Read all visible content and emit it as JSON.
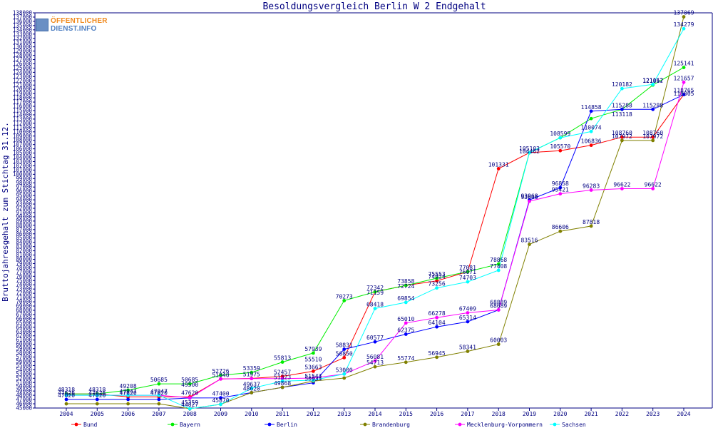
{
  "chart_data": {
    "type": "line",
    "title": "Besoldungsvergleich Berlin W 2 Endgehalt",
    "xlabel": "",
    "ylabel": "Bruttojahresgehalt zum Stichtag 31.12.",
    "ylim": [
      45000,
      138000
    ],
    "ystep": 1000,
    "grid": false,
    "legend_position": "bottom",
    "categories": [
      "2004",
      "2005",
      "2006",
      "2007",
      "2008",
      "2009",
      "2010",
      "2011",
      "2012",
      "2013",
      "2014",
      "2015",
      "2016",
      "2017",
      "2018",
      "2019",
      "2020",
      "2021",
      "2022",
      "2023",
      "2024"
    ],
    "series": [
      {
        "name": "Bund",
        "color": "#ff0000",
        "values": [
          48318,
          48318,
          47620,
          47620,
          47620,
          51840,
          51975,
          52457,
          53663,
          56850,
          72342,
          73858,
          74924,
          77081,
          101331,
          105103,
          105570,
          106836,
          108760,
          108760,
          118765
        ]
      },
      {
        "name": "Bayern",
        "color": "#00ee00",
        "values": [
          48318,
          48318,
          49208,
          50685,
          50685,
          52726,
          53359,
          55813,
          57939,
          70273,
          72342,
          73858,
          75553,
          77081,
          78868,
          105103,
          108599,
          113118,
          115288,
          121017,
          125141
        ]
      },
      {
        "name": "Berlin",
        "color": "#0000ff",
        "values": [
          47020,
          47020,
          47020,
          47020,
          47359,
          47400,
          48620,
          49868,
          50934,
          58831,
          60577,
          62375,
          64104,
          65314,
          68089,
          93968,
          96858,
          114858,
          115288,
          115288,
          118765
        ]
      },
      {
        "name": "Brandenburg",
        "color": "#808000",
        "values": [
          46000,
          46000,
          46000,
          46000,
          44827,
          45870,
          48620,
          49868,
          51323,
          52050,
          54713,
          55774,
          56945,
          58341,
          60003,
          83516,
          86606,
          87818,
          107972,
          107972,
          137069
        ]
      },
      {
        "name": "Mecklenburg-Vorpommern",
        "color": "#ff00ff",
        "values": [
          48000,
          48000,
          48000,
          48000,
          47400,
          51840,
          51924,
          51924,
          52050,
          53000,
          56081,
          65010,
          66278,
          67409,
          68089,
          93646,
          95421,
          96283,
          96622,
          96622,
          121657
        ]
      },
      {
        "name": "Sachsen",
        "color": "#00ffff",
        "values": [
          48000,
          48000,
          48000,
          48000,
          44827,
          45870,
          49637,
          51323,
          51543,
          53000,
          68418,
          69854,
          73256,
          74703,
          77408,
          105103,
          108599,
          110074,
          120182,
          121162,
          134279
        ]
      }
    ],
    "data_labels": [
      {
        "year": "2004",
        "value": "48318",
        "color": "#000080"
      },
      {
        "year": "2004",
        "value": "47626",
        "color": "#000080"
      },
      {
        "year": "2004",
        "value": "47020",
        "color": "#000080"
      },
      {
        "year": "2005",
        "value": "48318",
        "color": "#000080"
      },
      {
        "year": "2005",
        "value": "47626",
        "color": "#000080"
      },
      {
        "year": "2005",
        "value": "47020",
        "color": "#000080"
      },
      {
        "year": "2006",
        "value": "49208",
        "color": "#000080"
      },
      {
        "year": "2006",
        "value": "47947",
        "color": "#000080"
      },
      {
        "year": "2006",
        "value": "47620",
        "color": "#000080"
      },
      {
        "year": "2007",
        "value": "50685",
        "color": "#000080"
      },
      {
        "year": "2007",
        "value": "47947",
        "color": "#000080"
      },
      {
        "year": "2007",
        "value": "47620",
        "color": "#000080"
      },
      {
        "year": "2008",
        "value": "50685",
        "color": "#000080"
      },
      {
        "year": "2008",
        "value": "49500",
        "color": "#000080"
      },
      {
        "year": "2008",
        "value": "47620",
        "color": "#000080"
      },
      {
        "year": "2008",
        "value": "45359",
        "color": "#000080"
      },
      {
        "year": "2008",
        "value": "44827",
        "color": "#000080"
      },
      {
        "year": "2009",
        "value": "52726",
        "color": "#000080"
      },
      {
        "year": "2009",
        "value": "51840",
        "color": "#000080"
      },
      {
        "year": "2009",
        "value": "47400",
        "color": "#000080"
      },
      {
        "year": "2009",
        "value": "45870",
        "color": "#000080"
      },
      {
        "year": "2010",
        "value": "53359",
        "color": "#000080"
      },
      {
        "year": "2010",
        "value": "51975",
        "color": "#000080"
      },
      {
        "year": "2010",
        "value": "49637",
        "color": "#000080"
      },
      {
        "year": "2010",
        "value": "48620",
        "color": "#000080"
      },
      {
        "year": "2011",
        "value": "55813",
        "color": "#000080"
      },
      {
        "year": "2011",
        "value": "52457",
        "color": "#000080"
      },
      {
        "year": "2011",
        "value": "51323",
        "color": "#000080"
      },
      {
        "year": "2011",
        "value": "49868",
        "color": "#000080"
      },
      {
        "year": "2012",
        "value": "57939",
        "color": "#000080"
      },
      {
        "year": "2012",
        "value": "55510",
        "color": "#000080"
      },
      {
        "year": "2012",
        "value": "53663",
        "color": "#000080"
      },
      {
        "year": "2012",
        "value": "51543",
        "color": "#000080"
      },
      {
        "year": "2012",
        "value": "50934",
        "color": "#000080"
      },
      {
        "year": "2013",
        "value": "58831",
        "color": "#000080"
      },
      {
        "year": "2013",
        "value": "56850",
        "color": "#000080"
      },
      {
        "year": "2013",
        "value": "53000",
        "color": "#000080"
      },
      {
        "year": "2013",
        "value": "70273",
        "color": "#000080"
      },
      {
        "year": "2014",
        "value": "72342",
        "color": "#000080"
      },
      {
        "year": "2014",
        "value": "71159",
        "color": "#000080"
      },
      {
        "year": "2014",
        "value": "68418",
        "color": "#000080"
      },
      {
        "year": "2014",
        "value": "60577",
        "color": "#000080"
      },
      {
        "year": "2014",
        "value": "56081",
        "color": "#000080"
      },
      {
        "year": "2014",
        "value": "54713",
        "color": "#000080"
      },
      {
        "year": "2015",
        "value": "73858",
        "color": "#000080"
      },
      {
        "year": "2015",
        "value": "72724",
        "color": "#000080"
      },
      {
        "year": "2015",
        "value": "69854",
        "color": "#000080"
      },
      {
        "year": "2015",
        "value": "65010",
        "color": "#000080"
      },
      {
        "year": "2015",
        "value": "62375",
        "color": "#000080"
      },
      {
        "year": "2015",
        "value": "55774",
        "color": "#000080"
      },
      {
        "year": "2016",
        "value": "75553",
        "color": "#000080"
      },
      {
        "year": "2016",
        "value": "74924",
        "color": "#000080"
      },
      {
        "year": "2016",
        "value": "73256",
        "color": "#000080"
      },
      {
        "year": "2016",
        "value": "66278",
        "color": "#000080"
      },
      {
        "year": "2016",
        "value": "64104",
        "color": "#000080"
      },
      {
        "year": "2016",
        "value": "56945",
        "color": "#000080"
      },
      {
        "year": "2017",
        "value": "77081",
        "color": "#000080"
      },
      {
        "year": "2017",
        "value": "76071",
        "color": "#000080"
      },
      {
        "year": "2017",
        "value": "74703",
        "color": "#000080"
      },
      {
        "year": "2017",
        "value": "67409",
        "color": "#000080"
      },
      {
        "year": "2017",
        "value": "65314",
        "color": "#000080"
      },
      {
        "year": "2017",
        "value": "58341",
        "color": "#000080"
      },
      {
        "year": "2018",
        "value": "101331",
        "color": "#000080"
      },
      {
        "year": "2018",
        "value": "78868",
        "color": "#000080"
      },
      {
        "year": "2018",
        "value": "77408",
        "color": "#000080"
      },
      {
        "year": "2018",
        "value": "68889",
        "color": "#000080"
      },
      {
        "year": "2018",
        "value": "68089",
        "color": "#000080"
      },
      {
        "year": "2018",
        "value": "60003",
        "color": "#000080"
      },
      {
        "year": "2019",
        "value": "105103",
        "color": "#000080"
      },
      {
        "year": "2019",
        "value": "104462",
        "color": "#000080"
      },
      {
        "year": "2019",
        "value": "93968",
        "color": "#000080"
      },
      {
        "year": "2019",
        "value": "93646",
        "color": "#000080"
      },
      {
        "year": "2019",
        "value": "83516",
        "color": "#000080"
      },
      {
        "year": "2020",
        "value": "108599",
        "color": "#000080"
      },
      {
        "year": "2020",
        "value": "105570",
        "color": "#000080"
      },
      {
        "year": "2020",
        "value": "96858",
        "color": "#000080"
      },
      {
        "year": "2020",
        "value": "95421",
        "color": "#000080"
      },
      {
        "year": "2020",
        "value": "86606",
        "color": "#000080"
      },
      {
        "year": "2021",
        "value": "114858",
        "color": "#000080"
      },
      {
        "year": "2021",
        "value": "110074",
        "color": "#000080"
      },
      {
        "year": "2021",
        "value": "106836",
        "color": "#000080"
      },
      {
        "year": "2021",
        "value": "96283",
        "color": "#000080"
      },
      {
        "year": "2021",
        "value": "87818",
        "color": "#000080"
      },
      {
        "year": "2022",
        "value": "120182",
        "color": "#000080"
      },
      {
        "year": "2022",
        "value": "115288",
        "color": "#000080"
      },
      {
        "year": "2022",
        "value": "113118",
        "color": "#000080"
      },
      {
        "year": "2022",
        "value": "108760",
        "color": "#000080"
      },
      {
        "year": "2022",
        "value": "107972",
        "color": "#000080"
      },
      {
        "year": "2022",
        "value": "96622",
        "color": "#000080"
      },
      {
        "year": "2023",
        "value": "121017",
        "color": "#000080"
      },
      {
        "year": "2023",
        "value": "121162",
        "color": "#000080"
      },
      {
        "year": "2023",
        "value": "115288",
        "color": "#000080"
      },
      {
        "year": "2023",
        "value": "108760",
        "color": "#000080"
      },
      {
        "year": "2023",
        "value": "107972",
        "color": "#000080"
      },
      {
        "year": "2023",
        "value": "96622",
        "color": "#000080"
      },
      {
        "year": "2024",
        "value": "137069",
        "color": "#000080"
      },
      {
        "year": "2024",
        "value": "134279",
        "color": "#000080"
      },
      {
        "year": "2024",
        "value": "125141",
        "color": "#000080"
      },
      {
        "year": "2024",
        "value": "121657",
        "color": "#000080"
      },
      {
        "year": "2024",
        "value": "118765",
        "color": "#000080"
      },
      {
        "year": "2024",
        "value": "118005",
        "color": "#000080"
      }
    ]
  },
  "logo": {
    "line1": "ÖFFENTLICHER",
    "line2": "DIENST.INFO"
  },
  "colors": {
    "axis": "#000080",
    "text": "#000080",
    "background": "#ffffff"
  }
}
